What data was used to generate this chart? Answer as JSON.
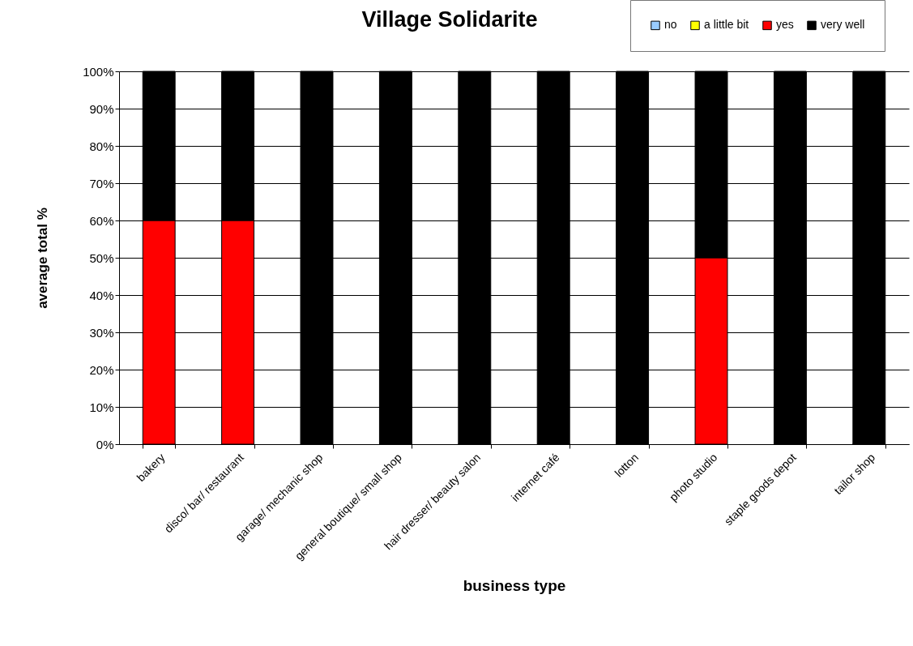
{
  "chart_data": {
    "type": "bar",
    "title": "Village Solidarite",
    "xlabel": "business type",
    "ylabel": "average total %",
    "categories": [
      "bakery",
      "disco/ bar/ restaurant",
      "garage/ mechanic shop",
      "general boutique/ small shop",
      "hair dresser/ beauty salon",
      "internet café",
      "lotton",
      "photo studio",
      "staple goods depot",
      "tailor shop"
    ],
    "series": [
      {
        "name": "no",
        "color": "#99ccff",
        "values": [
          0,
          0,
          0,
          0,
          0,
          0,
          0,
          0,
          0,
          0
        ]
      },
      {
        "name": "a little bit",
        "color": "#ffff00",
        "values": [
          0,
          0,
          0,
          0,
          0,
          0,
          0,
          0,
          0,
          0
        ]
      },
      {
        "name": "yes",
        "color": "#ff0000",
        "values": [
          60,
          60,
          0,
          0,
          0,
          0,
          0,
          50,
          0,
          0
        ]
      },
      {
        "name": "very well",
        "color": "#000000",
        "values": [
          40,
          40,
          100,
          100,
          100,
          100,
          100,
          50,
          100,
          100
        ]
      }
    ],
    "stacked": true,
    "ylim": [
      0,
      100
    ],
    "yticks": [
      {
        "value": 0,
        "label": "0%"
      },
      {
        "value": 10,
        "label": "10%"
      },
      {
        "value": 20,
        "label": "20%"
      },
      {
        "value": 30,
        "label": "30%"
      },
      {
        "value": 40,
        "label": "40%"
      },
      {
        "value": 50,
        "label": "50%"
      },
      {
        "value": 60,
        "label": "60%"
      },
      {
        "value": 70,
        "label": "70%"
      },
      {
        "value": 80,
        "label": "80%"
      },
      {
        "value": 90,
        "label": "90%"
      },
      {
        "value": 100,
        "label": "100%"
      }
    ],
    "grid": "y",
    "legend": "top right"
  }
}
